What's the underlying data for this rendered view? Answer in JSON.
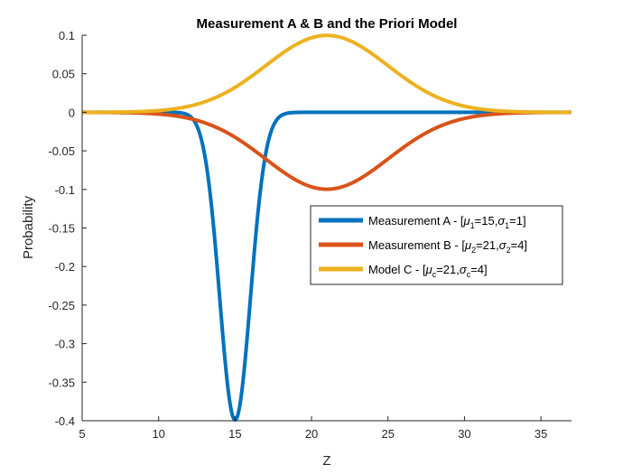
{
  "chart_data": {
    "type": "line",
    "title": "Measurement A & B and the Priori Model",
    "xlabel": "Z",
    "ylabel": "Probability",
    "xlim": [
      5,
      37
    ],
    "ylim": [
      -0.4,
      0.1
    ],
    "xticks": [
      5,
      10,
      15,
      20,
      25,
      30,
      35
    ],
    "yticks": [
      0.1,
      0.05,
      0,
      -0.05,
      -0.1,
      -0.15,
      -0.2,
      -0.25,
      -0.3,
      -0.35,
      -0.4
    ],
    "ytick_labels": [
      "0.1",
      "0.05",
      "0",
      "-0.05",
      "-0.1",
      "-0.15",
      "-0.2",
      "-0.25",
      "-0.3",
      "-0.35",
      "-0.4"
    ],
    "grid": false,
    "legend_position": "right",
    "series": [
      {
        "name": "Measurement A - [μ1=15,σ1=1]",
        "legend": {
          "prefix": "Measurement A - [",
          "mu_sub": "1",
          "mu_val": "=15,",
          "sigma_sub": "1",
          "sigma_val": "=1]"
        },
        "color": "#0072BD",
        "distribution": {
          "mu": 15,
          "sigma": 1,
          "sign": -1
        },
        "x": [
          5,
          10,
          11,
          12,
          13,
          14,
          15,
          16,
          17,
          18,
          19,
          20,
          25,
          30,
          35,
          37
        ],
        "y": [
          0,
          0,
          -0.0001,
          -0.0044,
          -0.054,
          -0.242,
          -0.399,
          -0.242,
          -0.054,
          -0.0044,
          -0.0001,
          0,
          0,
          0,
          0,
          0
        ]
      },
      {
        "name": "Measurement B - [μ2=21,σ2=4]",
        "legend": {
          "prefix": "Measurement B - [",
          "mu_sub": "2",
          "mu_val": "=21,",
          "sigma_sub": "2",
          "sigma_val": "=4]"
        },
        "color": "#D95319",
        "distribution": {
          "mu": 21,
          "sigma": 4,
          "sign": -1
        },
        "x": [
          5,
          9,
          13,
          15,
          17,
          19,
          21,
          23,
          25,
          27,
          29,
          33,
          37
        ],
        "y": [
          -3.35e-05,
          -0.0011,
          -0.0135,
          -0.0324,
          -0.0605,
          -0.088,
          -0.0997,
          -0.088,
          -0.0605,
          -0.0324,
          -0.0135,
          -0.0011,
          -3.35e-05
        ]
      },
      {
        "name": "Model C - [μc=21,σc=4]",
        "legend": {
          "prefix": "Model C - [",
          "mu_sub": "c",
          "mu_val": "=21,",
          "sigma_sub": "c",
          "sigma_val": "=4]"
        },
        "color": "#EDB120",
        "distribution": {
          "mu": 21,
          "sigma": 4,
          "sign": 1
        },
        "x": [
          5,
          9,
          13,
          15,
          17,
          19,
          21,
          23,
          25,
          27,
          29,
          33,
          37
        ],
        "y": [
          3.35e-05,
          0.0011,
          0.0135,
          0.0324,
          0.0605,
          0.088,
          0.0997,
          0.088,
          0.0605,
          0.0324,
          0.0135,
          0.0011,
          3.35e-05
        ]
      }
    ]
  }
}
